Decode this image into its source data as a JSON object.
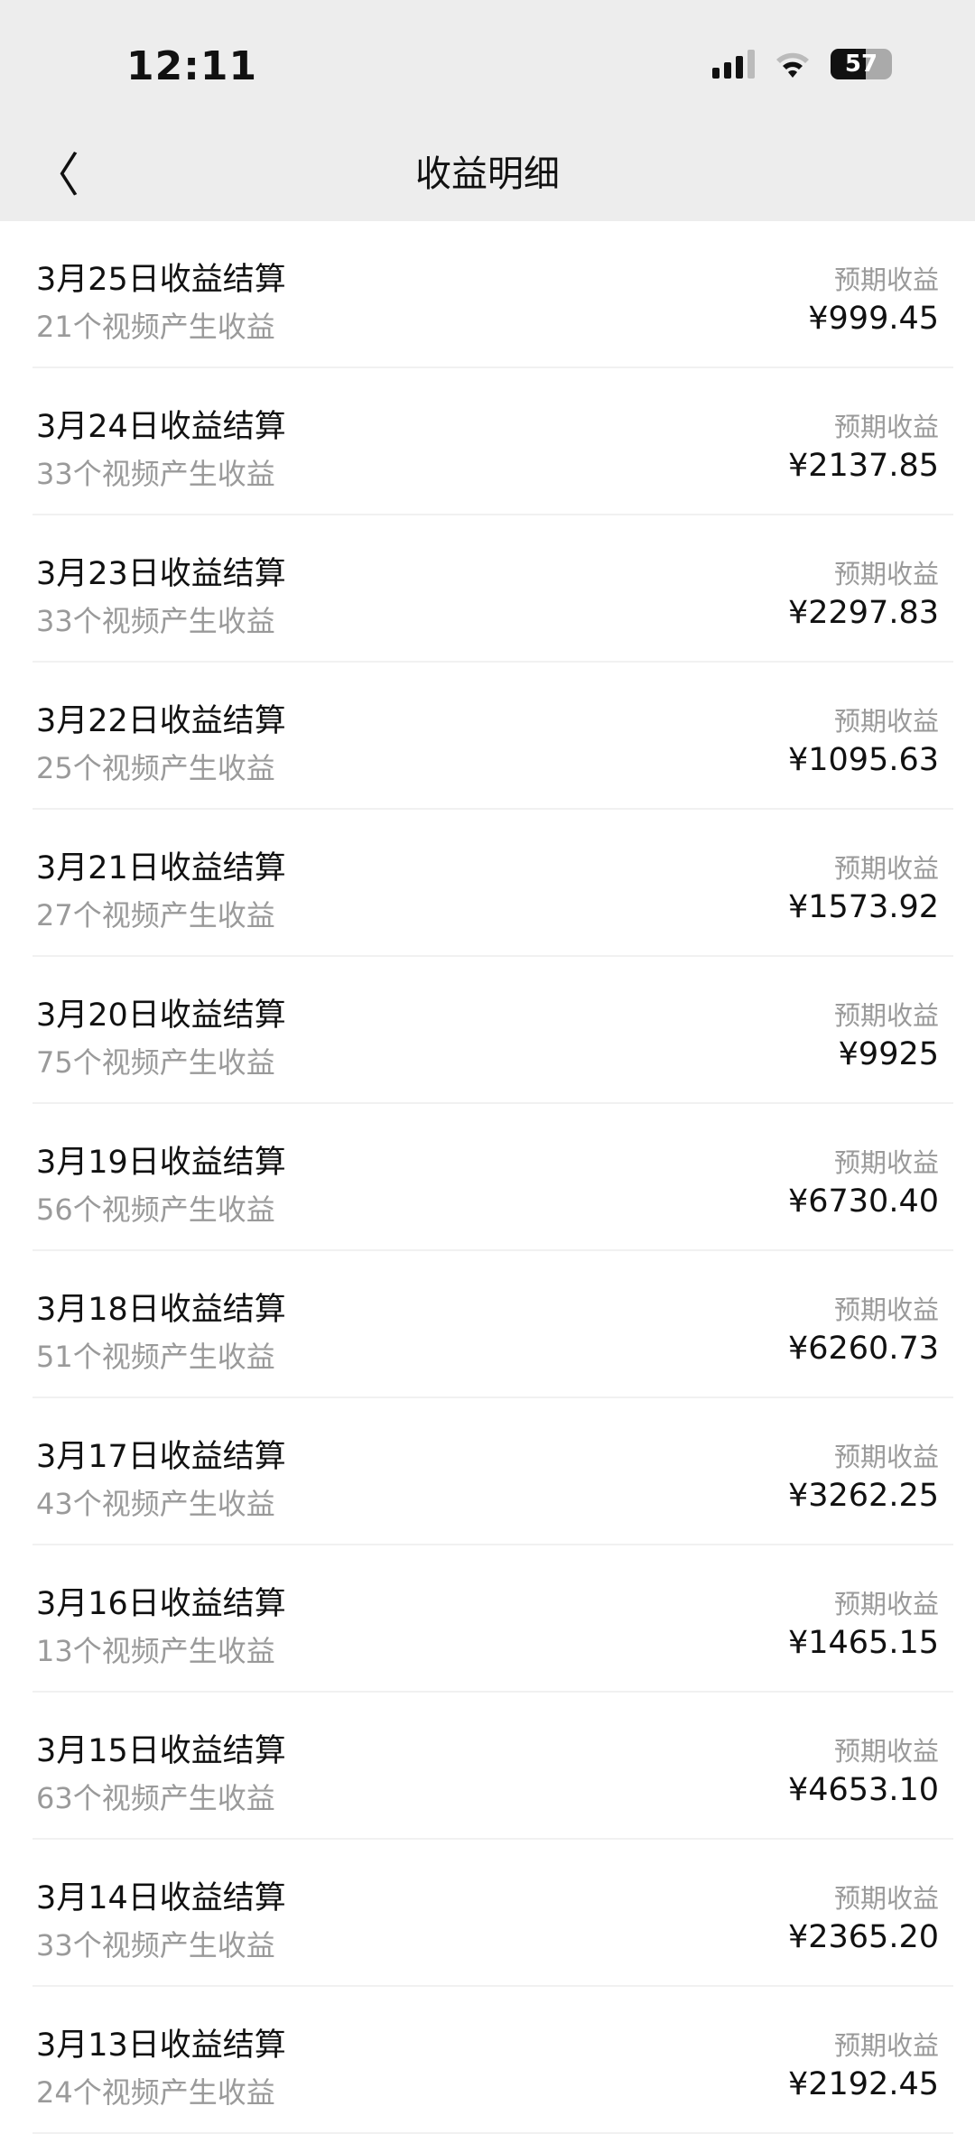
{
  "status_bar": {
    "time": "12:11",
    "battery": "57",
    "icons": [
      "signal-icon",
      "wifi-icon",
      "battery-icon"
    ]
  },
  "header": {
    "title": "收益明细",
    "back_icon": "chevron-left-icon"
  },
  "rows": [
    {
      "title": "3月25日收益结算",
      "subtitle": "21个视频产生收益",
      "label": "预期收益",
      "amount": "¥999.45"
    },
    {
      "title": "3月24日收益结算",
      "subtitle": "33个视频产生收益",
      "label": "预期收益",
      "amount": "¥2137.85"
    },
    {
      "title": "3月23日收益结算",
      "subtitle": "33个视频产生收益",
      "label": "预期收益",
      "amount": "¥2297.83"
    },
    {
      "title": "3月22日收益结算",
      "subtitle": "25个视频产生收益",
      "label": "预期收益",
      "amount": "¥1095.63"
    },
    {
      "title": "3月21日收益结算",
      "subtitle": "27个视频产生收益",
      "label": "预期收益",
      "amount": "¥1573.92"
    },
    {
      "title": "3月20日收益结算",
      "subtitle": "75个视频产生收益",
      "label": "预期收益",
      "amount": "¥9925"
    },
    {
      "title": "3月19日收益结算",
      "subtitle": "56个视频产生收益",
      "label": "预期收益",
      "amount": "¥6730.40"
    },
    {
      "title": "3月18日收益结算",
      "subtitle": "51个视频产生收益",
      "label": "预期收益",
      "amount": "¥6260.73"
    },
    {
      "title": "3月17日收益结算",
      "subtitle": "43个视频产生收益",
      "label": "预期收益",
      "amount": "¥3262.25"
    },
    {
      "title": "3月16日收益结算",
      "subtitle": "13个视频产生收益",
      "label": "预期收益",
      "amount": "¥1465.15"
    },
    {
      "title": "3月15日收益结算",
      "subtitle": "63个视频产生收益",
      "label": "预期收益",
      "amount": "¥4653.10"
    },
    {
      "title": "3月14日收益结算",
      "subtitle": "33个视频产生收益",
      "label": "预期收益",
      "amount": "¥2365.20"
    },
    {
      "title": "3月13日收益结算",
      "subtitle": "24个视频产生收益",
      "label": "预期收益",
      "amount": "¥2192.45"
    }
  ]
}
